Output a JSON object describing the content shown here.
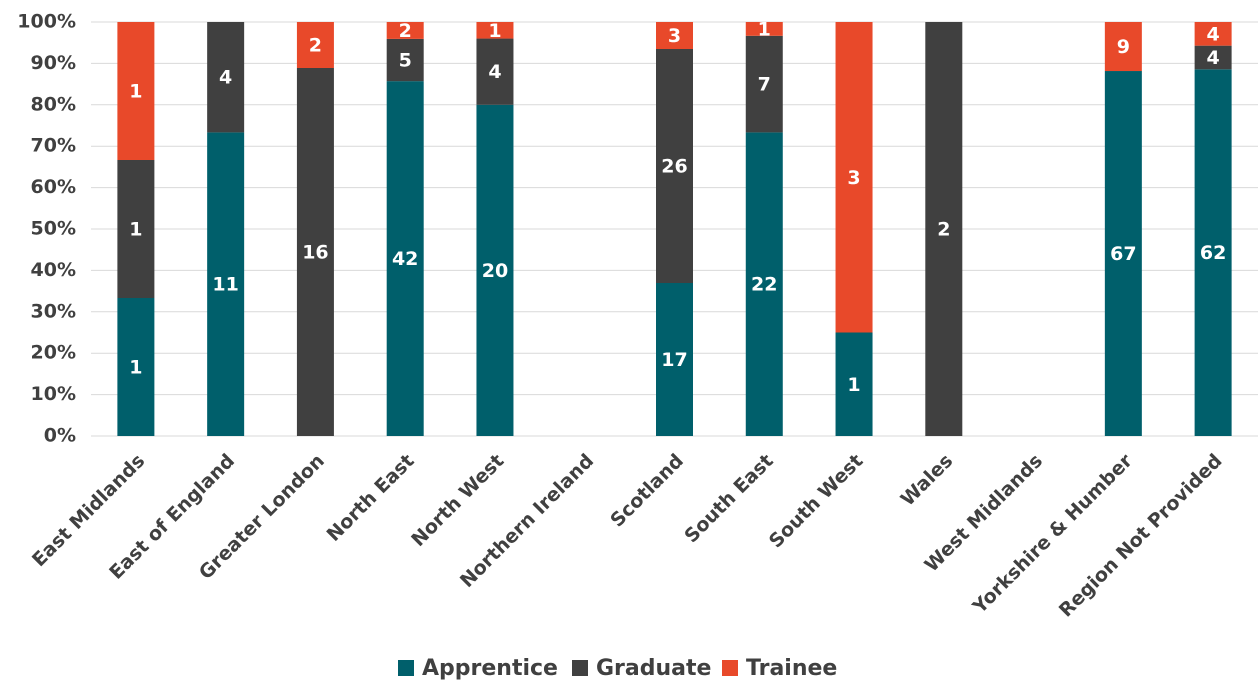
{
  "chart_data": {
    "type": "bar",
    "stacking": "percent",
    "categories": [
      "East Midlands",
      "East of England",
      "Greater London",
      "North East",
      "North West",
      "Northern Ireland",
      "Scotland",
      "South East",
      "South West",
      "Wales",
      "West Midlands",
      "Yorkshire & Humber",
      "Region Not Provided"
    ],
    "series": [
      {
        "name": "Apprentice",
        "color": "#005f6b",
        "values": [
          1,
          11,
          null,
          42,
          20,
          null,
          17,
          22,
          1,
          null,
          null,
          67,
          62
        ]
      },
      {
        "name": "Graduate",
        "color": "#404040",
        "values": [
          1,
          4,
          16,
          5,
          4,
          null,
          26,
          7,
          null,
          2,
          null,
          null,
          4
        ]
      },
      {
        "name": "Trainee",
        "color": "#e8492a",
        "values": [
          1,
          null,
          2,
          2,
          1,
          null,
          3,
          1,
          3,
          null,
          null,
          9,
          4
        ]
      }
    ],
    "ylim": [
      0,
      100
    ],
    "yticks": [
      {
        "value": 0,
        "label": "0%"
      },
      {
        "value": 10,
        "label": "10%"
      },
      {
        "value": 20,
        "label": "20%"
      },
      {
        "value": 30,
        "label": "30%"
      },
      {
        "value": 40,
        "label": "40%"
      },
      {
        "value": 50,
        "label": "50%"
      },
      {
        "value": 60,
        "label": "60%"
      },
      {
        "value": 70,
        "label": "70%"
      },
      {
        "value": 80,
        "label": "80%"
      },
      {
        "value": 90,
        "label": "90%"
      },
      {
        "value": 100,
        "label": "100%"
      }
    ],
    "grid": true,
    "legend": "bottom"
  }
}
